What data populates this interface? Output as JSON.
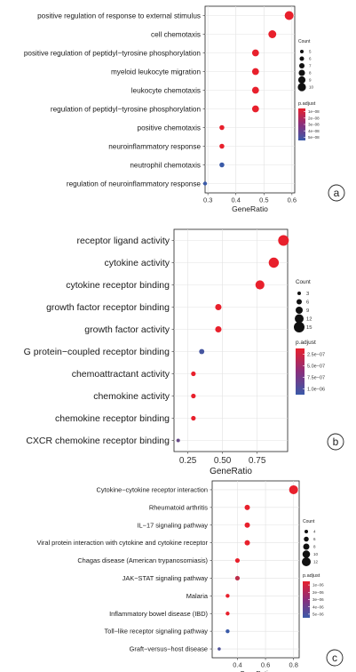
{
  "panels": [
    {
      "id": "a",
      "panel_label": "a",
      "chart_data": {
        "type": "scatter",
        "xlabel": "GeneRatio",
        "xlim": [
          0.29,
          0.61
        ],
        "xticks": [
          0.3,
          0.4,
          0.5,
          0.6
        ],
        "xtick_labels": [
          "0.3",
          "0.4",
          "0.5",
          "0.6"
        ],
        "categories": [
          "positive regulation of response to external stimulus",
          "cell chemotaxis",
          "positive regulation of peptidyl−tyrosine phosphorylation",
          "myeloid leukocyte migration",
          "leukocyte chemotaxis",
          "regulation of peptidyl−tyrosine phosphorylation",
          "positive chemotaxis",
          "neuroinflammatory response",
          "neutrophil chemotaxis",
          "regulation of neuroinflammatory response"
        ],
        "gene_ratio": [
          0.59,
          0.53,
          0.47,
          0.47,
          0.47,
          0.47,
          0.35,
          0.35,
          0.35,
          0.29
        ],
        "count": [
          10,
          9,
          8,
          8,
          8,
          8,
          6,
          6,
          6,
          5
        ],
        "p_adjust": [
          1e-08,
          1e-08,
          1e-08,
          1e-08,
          1e-08,
          1e-08,
          1e-08,
          1e-08,
          5.5e-08,
          5e-08
        ],
        "size_legend": {
          "title": "Count",
          "labels": [
            "5",
            "6",
            "7",
            "8",
            "9",
            "10"
          ],
          "values": [
            5,
            6,
            7,
            8,
            9,
            10
          ]
        },
        "color_legend": {
          "title": "p.adjust",
          "labels": [
            "1e−08",
            "2e−08",
            "3e−08",
            "4e−08",
            "5e−08"
          ],
          "values": [
            1e-08,
            2e-08,
            3e-08,
            4e-08,
            5e-08
          ],
          "low_color": "#e8202c",
          "high_color": "#3a5aa8"
        },
        "grid": true,
        "legend_position": "right"
      }
    },
    {
      "id": "b",
      "panel_label": "b",
      "chart_data": {
        "type": "scatter",
        "xlabel": "GeneRatio",
        "xlim": [
          0.15,
          0.97
        ],
        "xticks": [
          0.25,
          0.5,
          0.75
        ],
        "xtick_labels": [
          "0.25",
          "0.50",
          "0.75"
        ],
        "categories": [
          "receptor ligand activity",
          "cytokine activity",
          "cytokine receptor binding",
          "growth factor receptor binding",
          "growth factor activity",
          "G protein−coupled receptor binding",
          "chemoattractant activity",
          "chemokine activity",
          "chemokine receptor binding",
          "CXCR chemokine receptor binding"
        ],
        "gene_ratio": [
          0.94,
          0.87,
          0.77,
          0.47,
          0.47,
          0.35,
          0.29,
          0.29,
          0.29,
          0.18
        ],
        "count": [
          16,
          15,
          13,
          8,
          8,
          6,
          5,
          5,
          5,
          3
        ],
        "p_adjust": [
          1e-08,
          1e-08,
          1e-08,
          2.5e-08,
          2.5e-08,
          9.5e-07,
          1e-08,
          1e-08,
          1e-08,
          8e-07
        ],
        "size_legend": {
          "title": "Count",
          "labels": [
            "3",
            "6",
            "9",
            "12",
            "15"
          ],
          "values": [
            3,
            6,
            9,
            12,
            15
          ]
        },
        "color_legend": {
          "title": "p.adjust",
          "labels": [
            "2.5e−07",
            "5.0e−07",
            "7.5e−07",
            "1.0e−06"
          ],
          "values": [
            2.5e-07,
            5e-07,
            7.5e-07,
            1e-06
          ],
          "low_color": "#e8202c",
          "high_color": "#3a5aa8"
        },
        "grid": true,
        "legend_position": "right"
      }
    },
    {
      "id": "c",
      "panel_label": "c",
      "chart_data": {
        "type": "scatter",
        "xlabel": "GeneRatio",
        "xlim": [
          0.22,
          0.84
        ],
        "xticks": [
          0.4,
          0.6,
          0.8
        ],
        "xtick_labels": [
          "0.4",
          "0.6",
          "0.8"
        ],
        "categories": [
          "Cytokine−cytokine receptor interaction",
          "Rheumatoid arthritis",
          "IL−17 signaling pathway",
          "Viral protein interaction with cytokine and cytokine receptor",
          "Chagas disease (American trypanosomiasis)",
          "JAK−STAT signaling pathway",
          "Malaria",
          "Inflammatory bowel disease (IBD)",
          "Toll−like receptor signaling pathway",
          "Graft−versus−host disease"
        ],
        "gene_ratio": [
          0.8,
          0.47,
          0.47,
          0.47,
          0.4,
          0.4,
          0.33,
          0.33,
          0.33,
          0.27
        ],
        "count": [
          12,
          7,
          7,
          7,
          6,
          6,
          5,
          5,
          5,
          4
        ],
        "p_adjust": [
          1e-08,
          1e-08,
          1e-08,
          1e-08,
          1e-08,
          2e-06,
          1e-08,
          1e-08,
          5e-06,
          4.5e-06
        ],
        "size_legend": {
          "title": "Count",
          "labels": [
            "4",
            "6",
            "8",
            "10",
            "12"
          ],
          "values": [
            4,
            6,
            8,
            10,
            12
          ]
        },
        "color_legend": {
          "title": "p.adjust",
          "labels": [
            "1e−06",
            "2e−06",
            "3e−06",
            "4e−06",
            "5e−06"
          ],
          "values": [
            1e-06,
            2e-06,
            3e-06,
            4e-06,
            5e-06
          ],
          "low_color": "#e8202c",
          "high_color": "#3a5aa8"
        },
        "grid": true,
        "legend_position": "right"
      }
    }
  ]
}
